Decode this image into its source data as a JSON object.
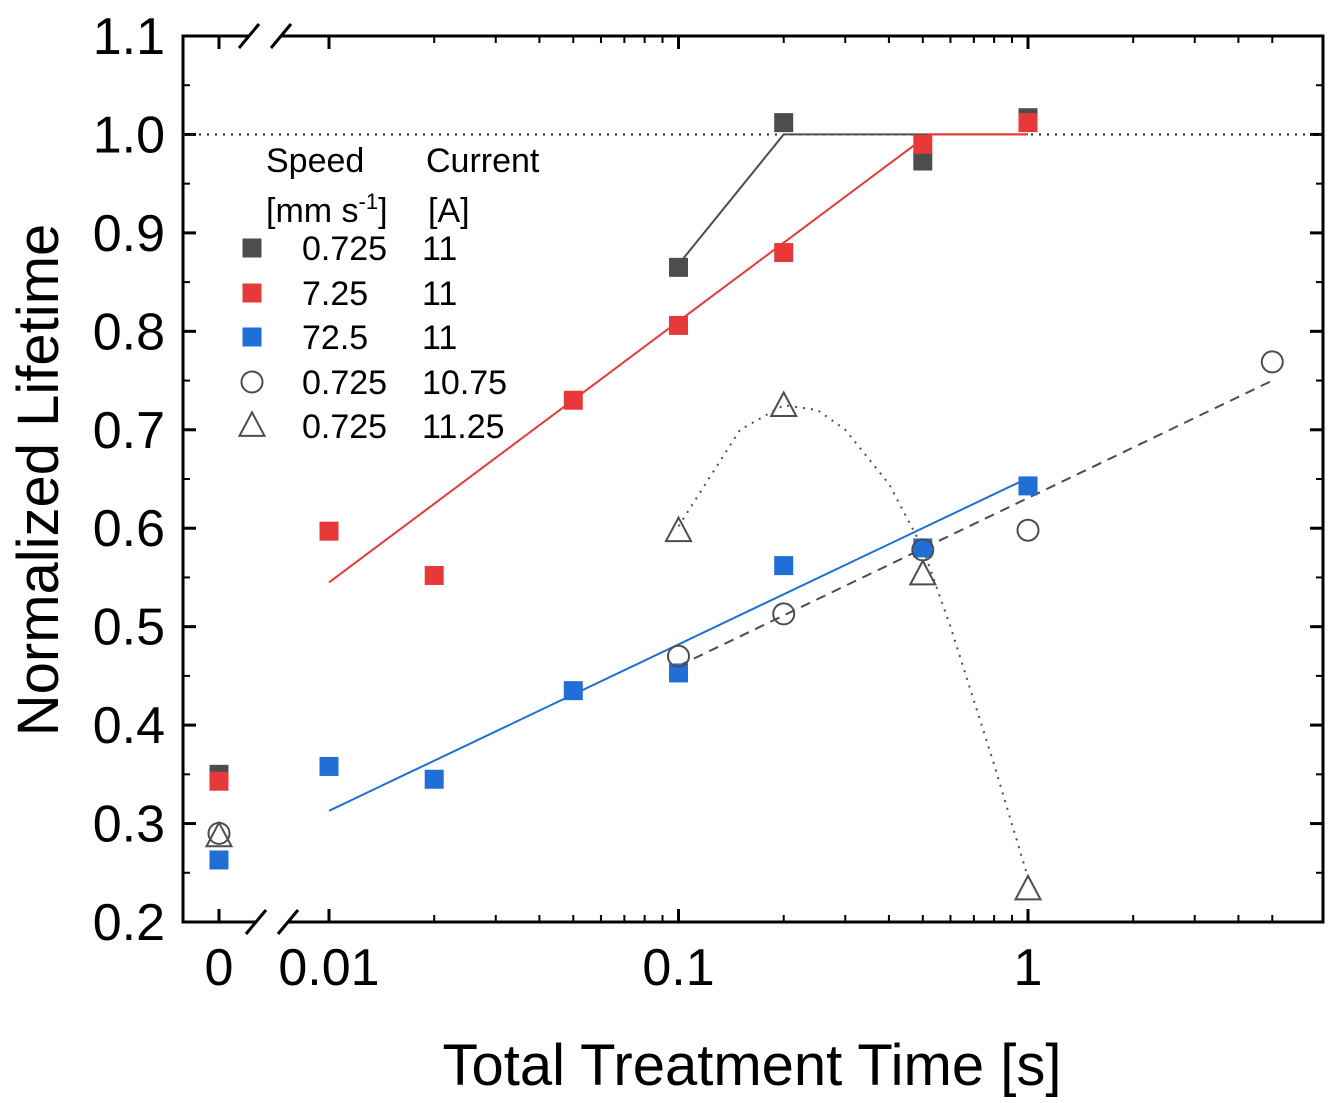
{
  "chart_data": {
    "type": "scatter",
    "xlabel": "Total Treatment Time [s]",
    "ylabel": "Normalized Lifetime",
    "x_scale": "log with axis break; x = 0 shown left of the break",
    "xlim": [
      0.007,
      5.5
    ],
    "ylim": [
      0.2,
      1.1
    ],
    "x_tick_labels": [
      "0",
      "0.01",
      "0.1",
      "1"
    ],
    "y_tick_labels": [
      "0.2",
      "0.3",
      "0.4",
      "0.5",
      "0.6",
      "0.7",
      "0.8",
      "0.9",
      "1.0",
      "1.1"
    ],
    "reference_line": {
      "y": 1.0,
      "style": "dotted"
    },
    "legend": {
      "header": {
        "speed": "Speed",
        "current": "Current",
        "speed_unit": "[mm s",
        "speed_unit_sup": "-1",
        "speed_unit_end": "]",
        "current_unit": "[A]"
      },
      "entries": [
        {
          "speed": "0.725",
          "current": "11"
        },
        {
          "speed": "7.25",
          "current": "11"
        },
        {
          "speed": "72.5",
          "current": "11"
        },
        {
          "speed": "0.725",
          "current": "10.75"
        },
        {
          "speed": "0.725",
          "current": "11.25"
        }
      ]
    },
    "series": [
      {
        "name": "0.725 mm/s, 11 A",
        "marker": "square",
        "color": "#4d4d4d",
        "points": [
          [
            0,
            0.35
          ],
          [
            0.1,
            0.865
          ],
          [
            0.2,
            1.012
          ],
          [
            0.5,
            0.973
          ],
          [
            1,
            1.017
          ]
        ],
        "fit": {
          "style": "solid",
          "points": [
            [
              0.1,
              0.868
            ],
            [
              0.2,
              1.0
            ],
            [
              1,
              1.0
            ]
          ]
        }
      },
      {
        "name": "7.25 mm/s, 11 A",
        "marker": "square",
        "color": "#e8393a",
        "points": [
          [
            0,
            0.343
          ],
          [
            0.01,
            0.597
          ],
          [
            0.02,
            0.552
          ],
          [
            0.05,
            0.73
          ],
          [
            0.1,
            0.806
          ],
          [
            0.2,
            0.88
          ],
          [
            0.5,
            0.99
          ],
          [
            1,
            1.012
          ]
        ],
        "fit": {
          "style": "solid",
          "points": [
            [
              0.01,
              0.545
            ],
            [
              0.52,
              1.0
            ],
            [
              1,
              1.0
            ]
          ]
        }
      },
      {
        "name": "72.5 mm/s, 11 A",
        "marker": "square",
        "color": "#1f6fd6",
        "points": [
          [
            0,
            0.263
          ],
          [
            0.01,
            0.358
          ],
          [
            0.02,
            0.345
          ],
          [
            0.05,
            0.435
          ],
          [
            0.1,
            0.453
          ],
          [
            0.2,
            0.562
          ],
          [
            0.5,
            0.58
          ],
          [
            1,
            0.643
          ]
        ],
        "fit": {
          "style": "solid",
          "points": [
            [
              0.01,
              0.313
            ],
            [
              1,
              0.651
            ]
          ]
        }
      },
      {
        "name": "0.725 mm/s, 10.75 A",
        "marker": "circle-open",
        "color": "#4d4d4d",
        "points": [
          [
            0,
            0.29
          ],
          [
            0.1,
            0.47
          ],
          [
            0.2,
            0.513
          ],
          [
            0.5,
            0.578
          ],
          [
            1,
            0.598
          ],
          [
            5,
            0.769
          ]
        ],
        "fit": {
          "style": "dashed",
          "points": [
            [
              0.1,
              0.46
            ],
            [
              5,
              0.75
            ]
          ]
        }
      },
      {
        "name": "0.725 mm/s, 11.25 A",
        "marker": "triangle-open",
        "color": "#4d4d4d",
        "points": [
          [
            0,
            0.287
          ],
          [
            0.1,
            0.597
          ],
          [
            0.2,
            0.724
          ],
          [
            0.5,
            0.553
          ],
          [
            1,
            0.233
          ]
        ],
        "fit": {
          "style": "dotted",
          "points": [
            [
              0.1,
              0.602
            ],
            [
              0.15,
              0.7
            ],
            [
              0.2,
              0.725
            ],
            [
              0.25,
              0.72
            ],
            [
              0.3,
              0.7
            ],
            [
              0.4,
              0.645
            ],
            [
              0.5,
              0.58
            ],
            [
              0.6,
              0.5
            ],
            [
              0.8,
              0.36
            ],
            [
              1,
              0.245
            ]
          ]
        }
      }
    ]
  }
}
